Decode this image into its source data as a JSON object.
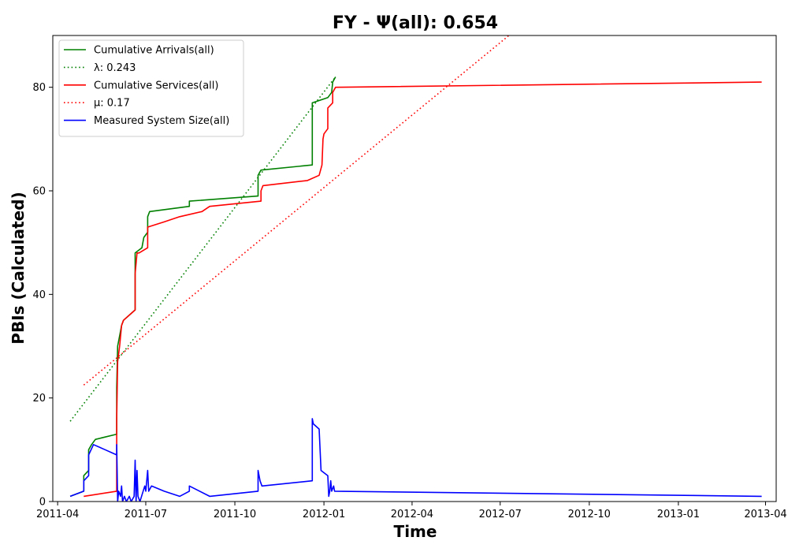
{
  "chart_data": {
    "type": "line",
    "title": "FY -  Ψ(all): 0.654",
    "xlabel": "Time",
    "ylabel": "PBIs (Calculated)",
    "x_axis": "date",
    "xlim": [
      "2011-03-27",
      "2013-04-12"
    ],
    "ylim": [
      0,
      90
    ],
    "x_ticks": [
      "2011-04",
      "2011-07",
      "2011-10",
      "2012-01",
      "2012-04",
      "2012-07",
      "2012-10",
      "2013-01",
      "2013-04"
    ],
    "y_ticks": [
      0,
      20,
      40,
      60,
      80
    ],
    "grid": false,
    "legend_position": "top-left",
    "series": [
      {
        "name": "Cumulative Arrivals(all)",
        "color": "#008000",
        "style": "solid",
        "points": [
          [
            "2011-04-14",
            1
          ],
          [
            "2011-04-28",
            2
          ],
          [
            "2011-04-28",
            5
          ],
          [
            "2011-05-03",
            6
          ],
          [
            "2011-05-03",
            10
          ],
          [
            "2011-05-06",
            11
          ],
          [
            "2011-05-10",
            12
          ],
          [
            "2011-06-01",
            13
          ],
          [
            "2011-06-01",
            22
          ],
          [
            "2011-06-02",
            30
          ],
          [
            "2011-06-04",
            32
          ],
          [
            "2011-06-06",
            34
          ],
          [
            "2011-06-08",
            35
          ],
          [
            "2011-06-20",
            37
          ],
          [
            "2011-06-20",
            48
          ],
          [
            "2011-06-27",
            49
          ],
          [
            "2011-06-29",
            51
          ],
          [
            "2011-07-03",
            52
          ],
          [
            "2011-07-03",
            55
          ],
          [
            "2011-07-05",
            56
          ],
          [
            "2011-08-15",
            57
          ],
          [
            "2011-08-15",
            58
          ],
          [
            "2011-10-25",
            59
          ],
          [
            "2011-10-25",
            63
          ],
          [
            "2011-10-28",
            64
          ],
          [
            "2011-12-20",
            65
          ],
          [
            "2011-12-20",
            77
          ],
          [
            "2012-01-05",
            78
          ],
          [
            "2012-01-09",
            79
          ],
          [
            "2012-01-10",
            81
          ],
          [
            "2012-01-13",
            82
          ]
        ]
      },
      {
        "name": "λ: 0.243",
        "color": "#008000",
        "style": "dotted",
        "points": [
          [
            "2011-04-14",
            15.5
          ],
          [
            "2012-01-13",
            82
          ]
        ]
      },
      {
        "name": "Cumulative Services(all)",
        "color": "#ff0000",
        "style": "solid",
        "points": [
          [
            "2011-04-28",
            1
          ],
          [
            "2011-06-01",
            2
          ],
          [
            "2011-06-01",
            16
          ],
          [
            "2011-06-02",
            27
          ],
          [
            "2011-06-04",
            30
          ],
          [
            "2011-06-06",
            34
          ],
          [
            "2011-06-08",
            35
          ],
          [
            "2011-06-20",
            37
          ],
          [
            "2011-06-20",
            44
          ],
          [
            "2011-06-22",
            48
          ],
          [
            "2011-06-24",
            48
          ],
          [
            "2011-07-03",
            49
          ],
          [
            "2011-07-03",
            53
          ],
          [
            "2011-07-20",
            54
          ],
          [
            "2011-08-05",
            55
          ],
          [
            "2011-08-28",
            56
          ],
          [
            "2011-09-05",
            57
          ],
          [
            "2011-10-28",
            58
          ],
          [
            "2011-10-28",
            60
          ],
          [
            "2011-10-30",
            61
          ],
          [
            "2011-12-15",
            62
          ],
          [
            "2011-12-27",
            63
          ],
          [
            "2011-12-30",
            65
          ],
          [
            "2011-12-31",
            70
          ],
          [
            "2012-01-01",
            71
          ],
          [
            "2012-01-05",
            72
          ],
          [
            "2012-01-05",
            76
          ],
          [
            "2012-01-10",
            77
          ],
          [
            "2012-01-10",
            79
          ],
          [
            "2012-01-13",
            80
          ],
          [
            "2013-03-28",
            81
          ]
        ]
      },
      {
        "name": "μ: 0.17",
        "color": "#ff0000",
        "style": "dotted",
        "points": [
          [
            "2011-04-28",
            22.5
          ],
          [
            "2012-07-10",
            90
          ]
        ]
      },
      {
        "name": "Measured System Size(all)",
        "color": "#0000ff",
        "style": "solid",
        "points": [
          [
            "2011-04-14",
            1
          ],
          [
            "2011-04-28",
            2
          ],
          [
            "2011-04-28",
            4
          ],
          [
            "2011-05-03",
            5
          ],
          [
            "2011-05-03",
            9
          ],
          [
            "2011-05-08",
            11
          ],
          [
            "2011-05-20",
            10
          ],
          [
            "2011-06-01",
            9
          ],
          [
            "2011-06-01",
            11
          ],
          [
            "2011-06-02",
            0
          ],
          [
            "2011-06-03",
            2
          ],
          [
            "2011-06-05",
            1
          ],
          [
            "2011-06-06",
            3
          ],
          [
            "2011-06-07",
            0
          ],
          [
            "2011-06-09",
            1
          ],
          [
            "2011-06-11",
            0
          ],
          [
            "2011-06-14",
            1
          ],
          [
            "2011-06-16",
            0
          ],
          [
            "2011-06-19",
            1
          ],
          [
            "2011-06-20",
            8
          ],
          [
            "2011-06-21",
            0
          ],
          [
            "2011-06-22",
            6
          ],
          [
            "2011-06-23",
            1
          ],
          [
            "2011-06-25",
            0
          ],
          [
            "2011-06-30",
            3
          ],
          [
            "2011-07-01",
            2
          ],
          [
            "2011-07-03",
            6
          ],
          [
            "2011-07-04",
            2
          ],
          [
            "2011-07-07",
            3
          ],
          [
            "2011-07-20",
            2
          ],
          [
            "2011-08-05",
            1
          ],
          [
            "2011-08-15",
            2
          ],
          [
            "2011-08-15",
            3
          ],
          [
            "2011-09-05",
            1
          ],
          [
            "2011-10-25",
            2
          ],
          [
            "2011-10-25",
            6
          ],
          [
            "2011-10-27",
            4
          ],
          [
            "2011-10-29",
            3
          ],
          [
            "2011-12-20",
            4
          ],
          [
            "2011-12-20",
            16
          ],
          [
            "2011-12-21",
            15
          ],
          [
            "2011-12-27",
            14
          ],
          [
            "2011-12-28",
            10
          ],
          [
            "2011-12-29",
            6
          ],
          [
            "2012-01-05",
            5
          ],
          [
            "2012-01-06",
            1
          ],
          [
            "2012-01-07",
            2
          ],
          [
            "2012-01-08",
            4
          ],
          [
            "2012-01-09",
            2
          ],
          [
            "2012-01-11",
            3
          ],
          [
            "2012-01-12",
            2
          ],
          [
            "2013-03-28",
            1
          ]
        ]
      }
    ]
  }
}
